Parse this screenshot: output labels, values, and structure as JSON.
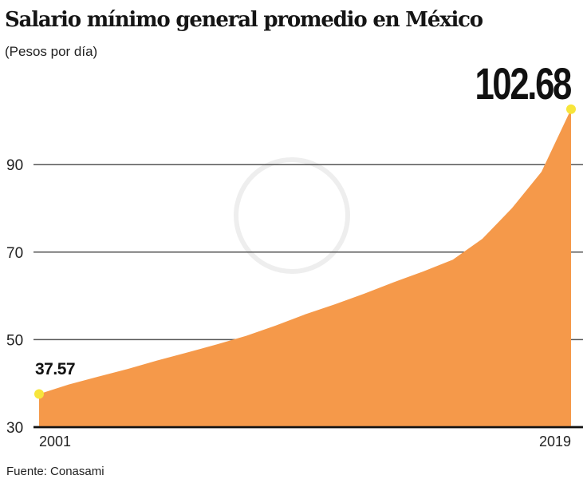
{
  "chart_data": {
    "type": "area",
    "title": "Salario mínimo general promedio en México",
    "subtitle": "(Pesos por día)",
    "source": "Fuente: Conasami",
    "x": [
      2001,
      2002,
      2003,
      2004,
      2005,
      2006,
      2007,
      2008,
      2009,
      2010,
      2011,
      2012,
      2013,
      2014,
      2015,
      2016,
      2017,
      2018,
      2019
    ],
    "values": [
      37.57,
      39.74,
      41.53,
      43.3,
      45.24,
      47.05,
      48.88,
      50.84,
      53.19,
      55.77,
      58.06,
      60.5,
      63.12,
      65.58,
      68.28,
      73.04,
      80.04,
      88.36,
      102.68
    ],
    "x_tick_labels": [
      "2001",
      "2019"
    ],
    "y_ticks": [
      30,
      50,
      70,
      90
    ],
    "y_tick_labels": [
      "30",
      "50",
      "70",
      "90"
    ],
    "ylim": [
      30,
      105
    ],
    "xlim": [
      2001,
      2019
    ],
    "grid": true,
    "annotations": [
      {
        "x": 2001,
        "label": "37.57"
      },
      {
        "x": 2019,
        "label": "102.68"
      }
    ],
    "colors": {
      "fill": "#f5994a",
      "marker": "#f7e53b",
      "grid": "#555555",
      "axis": "#111111"
    }
  }
}
